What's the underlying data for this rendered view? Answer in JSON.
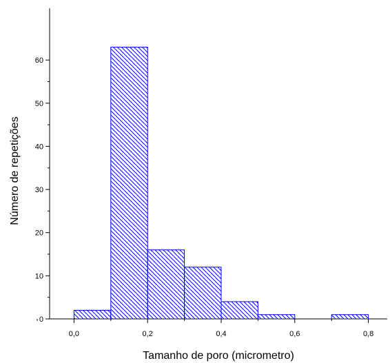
{
  "chart_data": {
    "type": "bar",
    "subtype": "histogram",
    "xlabel": "Tamanho de poro (micrometro)",
    "ylabel": "Número de repetições",
    "xlim": [
      -0.1,
      0.9
    ],
    "ylim": [
      0,
      72
    ],
    "x_ticks": [
      "0,0",
      "0,2",
      "0,4",
      "0,6",
      "0,8"
    ],
    "x_tick_values": [
      0.0,
      0.2,
      0.4,
      0.6,
      0.8
    ],
    "y_ticks": [
      "0",
      "10",
      "20",
      "30",
      "40",
      "50",
      "60"
    ],
    "y_tick_values": [
      0,
      10,
      20,
      30,
      40,
      50,
      60
    ],
    "bins": [
      {
        "x0": 0.0,
        "x1": 0.1,
        "count": 2
      },
      {
        "x0": 0.1,
        "x1": 0.2,
        "count": 63
      },
      {
        "x0": 0.2,
        "x1": 0.3,
        "count": 16
      },
      {
        "x0": 0.3,
        "x1": 0.4,
        "count": 12
      },
      {
        "x0": 0.4,
        "x1": 0.5,
        "count": 4
      },
      {
        "x0": 0.5,
        "x1": 0.6,
        "count": 1
      },
      {
        "x0": 0.6,
        "x1": 0.7,
        "count": 0
      },
      {
        "x0": 0.7,
        "x1": 0.8,
        "count": 1
      }
    ],
    "bar_color": "#0000ff",
    "fill_pattern": "diagonal-hatch",
    "grid": false,
    "legend": "none"
  }
}
